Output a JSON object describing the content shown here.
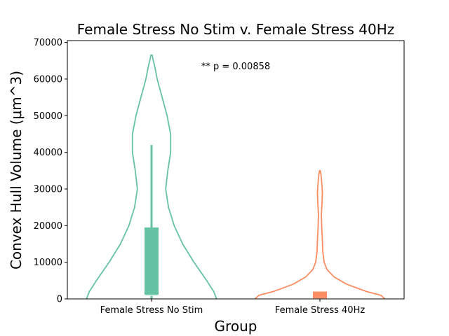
{
  "chart_data": {
    "type": "violin",
    "title": "Female Stress No Stim v. Female Stress 40Hz",
    "xlabel": "Group",
    "ylabel": "Convex Hull Volume (μm^3)",
    "ylim": [
      0,
      70500
    ],
    "yticks": [
      0,
      10000,
      20000,
      30000,
      40000,
      50000,
      60000,
      70000
    ],
    "categories": [
      "Female Stress No Stim",
      "Female Stress 40Hz"
    ],
    "annotation": "** p = 0.00858",
    "grid": false,
    "series": [
      {
        "category": "Female Stress No Stim",
        "color": "#66c2a5",
        "box": {
          "q1": 800,
          "q3": 19500,
          "whisker_low": 0,
          "whisker_high": 42000,
          "median": 1000
        },
        "violin": {
          "y": [
            0,
            2000,
            5000,
            10000,
            15000,
            20000,
            25000,
            30000,
            35000,
            40000,
            45000,
            50000,
            55000,
            60000,
            63000,
            65000,
            66500
          ],
          "width": [
            0.92,
            0.88,
            0.78,
            0.6,
            0.44,
            0.32,
            0.24,
            0.2,
            0.23,
            0.27,
            0.27,
            0.22,
            0.15,
            0.08,
            0.05,
            0.025,
            0.01
          ]
        }
      },
      {
        "category": "Female Stress 40Hz",
        "color": "#fc8d62",
        "box": {
          "q1": 0,
          "q3": 2000,
          "whisker_low": 0,
          "whisker_high": 2000,
          "median": 0
        },
        "violin": {
          "y": [
            0,
            1000,
            2000,
            4000,
            6000,
            8000,
            10000,
            13000,
            16000,
            20000,
            23000,
            26000,
            29000,
            32000,
            34000,
            35000
          ],
          "width": [
            0.92,
            0.86,
            0.66,
            0.38,
            0.2,
            0.1,
            0.06,
            0.04,
            0.035,
            0.025,
            0.02,
            0.03,
            0.035,
            0.025,
            0.015,
            0.005
          ]
        }
      }
    ]
  }
}
